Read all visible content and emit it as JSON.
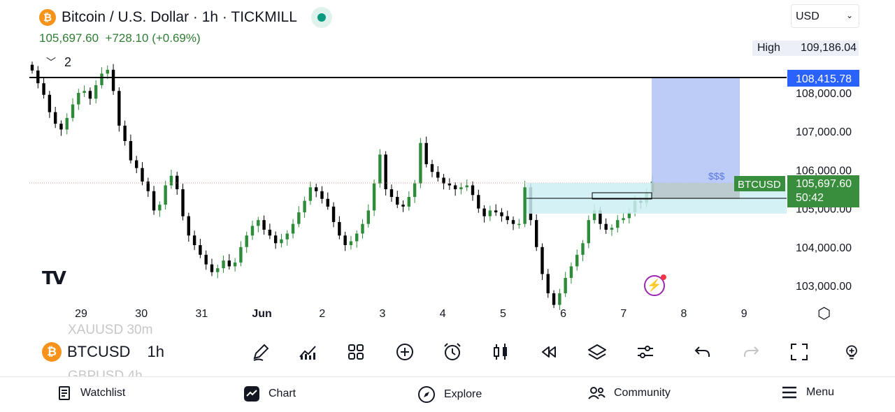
{
  "header": {
    "title": "Bitcoin / U.S. Dollar · 1h · TICKMILL",
    "price": "105,697.60",
    "change": "+728.10 (+0.69%)",
    "currency": "USD",
    "high_label": "High",
    "high_value": "109,186.04",
    "collapse_count": "2"
  },
  "chart_data": {
    "type": "candlestick",
    "symbol": "BTCUSD",
    "interval": "1h",
    "y_ticks": [
      "108,000.00",
      "107,000.00",
      "106,000.00",
      "105,000.00",
      "104,000.00",
      "103,000.00"
    ],
    "x_ticks": [
      "29",
      "30",
      "31",
      "Jun",
      "2",
      "3",
      "4",
      "5",
      "6",
      "7",
      "8",
      "9"
    ],
    "horizontal_line_price": "108,415.78",
    "current_price": "105,697.60",
    "countdown": "50:42",
    "symbol_tag": "BTCUSD",
    "annotation": "$$$",
    "closes": [
      108580,
      108250,
      107950,
      107500,
      107200,
      107050,
      107350,
      107700,
      108000,
      108050,
      107850,
      108200,
      108500,
      108600,
      108050,
      107150,
      106750,
      106250,
      106050,
      105700,
      105450,
      104950,
      105100,
      105600,
      105850,
      105500,
      104800,
      104300,
      104050,
      103800,
      103550,
      103350,
      103450,
      103650,
      103500,
      103600,
      104000,
      104300,
      104550,
      104700,
      104450,
      104300,
      104100,
      104200,
      104350,
      104600,
      104900,
      105200,
      105550,
      105450,
      105250,
      105050,
      104650,
      104300,
      104050,
      104150,
      104350,
      104600,
      104950,
      105650,
      106400,
      105500,
      105300,
      105100,
      105050,
      105300,
      105650,
      106700,
      106150,
      105950,
      105800,
      105650,
      105600,
      105500,
      105550,
      105600,
      105350,
      105000,
      104800,
      104950,
      104900,
      104800,
      104700,
      104600,
      104600,
      105550,
      104700,
      104000,
      103300,
      102800,
      102500,
      102800,
      103200,
      103500,
      103800,
      104100,
      104700,
      104950,
      104600,
      104450,
      104500,
      104700,
      104750,
      104900,
      105200,
      105150,
      105400,
      105700
    ]
  },
  "toolbar": {
    "symbol": "BTCUSD",
    "interval": "1h",
    "ghost_above": "XAUUSD    30m",
    "ghost_below": "GBPUSD    4h"
  },
  "nav": {
    "watchlist": "Watchlist",
    "chart": "Chart",
    "explore": "Explore",
    "community": "Community",
    "menu": "Menu"
  },
  "colors": {
    "up": "#2e8b3a",
    "down": "#000000",
    "accent_blue": "#2962ff",
    "price_tag": "#388e3c",
    "zone_blue": "#b5c7f5",
    "zone_cyan": "#cdeef5"
  }
}
